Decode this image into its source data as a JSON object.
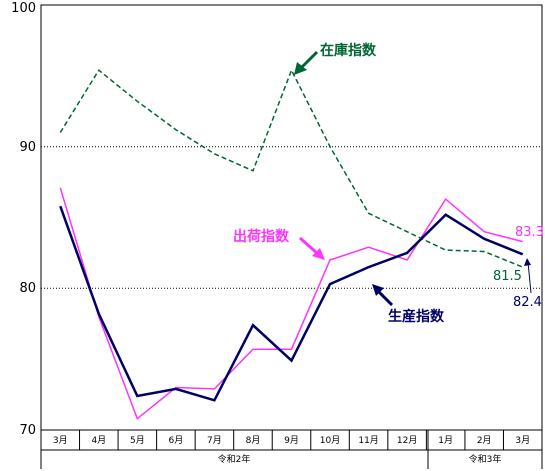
{
  "chart_data": {
    "type": "line",
    "categories": [
      "3月",
      "4月",
      "5月",
      "6月",
      "7月",
      "8月",
      "9月",
      "10月",
      "11月",
      "12月",
      "1月",
      "2月",
      "3月"
    ],
    "era_labels": [
      "令和2年",
      "令和3年"
    ],
    "ylim": [
      70,
      100
    ],
    "yticks": [
      "70",
      "80",
      "90",
      "100"
    ],
    "grid": "dotted horizontal at 80 and 90",
    "series": [
      {
        "name": "在庫指数",
        "color": "#006633",
        "style": "dashed",
        "values": [
          91.0,
          95.4,
          93.2,
          91.2,
          89.5,
          88.3,
          95.4,
          90.0,
          85.3,
          84.0,
          82.7,
          82.6,
          81.5
        ],
        "end_label": "81.5"
      },
      {
        "name": "出荷指数",
        "color": "#ff33ff",
        "style": "solid",
        "values": [
          87.1,
          78.0,
          70.8,
          73.0,
          72.9,
          75.7,
          75.7,
          82.0,
          82.9,
          82.0,
          86.3,
          84.0,
          83.3
        ],
        "end_label": "83.3"
      },
      {
        "name": "生産指数",
        "color": "#000066",
        "style": "solid-bold",
        "values": [
          85.8,
          78.2,
          72.4,
          72.9,
          72.1,
          77.4,
          74.9,
          80.3,
          81.5,
          82.5,
          85.2,
          83.5,
          82.4
        ],
        "end_label": "82.4"
      }
    ]
  }
}
